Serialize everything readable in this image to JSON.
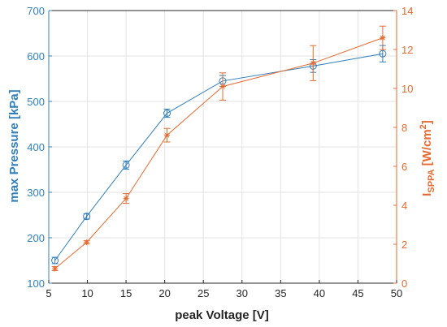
{
  "chart_data": {
    "type": "line",
    "title": "",
    "xlabel": "peak Voltage [V]",
    "ylabel_left": "max Pressure [kPa]",
    "ylabel_right": {
      "main": "I",
      "sub": "SPPA",
      "unit_prefix": " [W/cm",
      "unit_sup": "2",
      "unit_suffix": "]"
    },
    "xlim": [
      5,
      50
    ],
    "ylim_left": [
      100,
      700
    ],
    "ylim_right": [
      0,
      14
    ],
    "xticks": [
      5,
      10,
      15,
      20,
      25,
      30,
      35,
      40,
      45,
      50
    ],
    "yticks_left": [
      100,
      200,
      300,
      400,
      500,
      600,
      700
    ],
    "yticks_right": [
      0,
      2,
      4,
      6,
      8,
      10,
      12,
      14
    ],
    "grid": true,
    "series": [
      {
        "axis": "left",
        "marker": "circle",
        "color": "#2f7fbd",
        "x": [
          5.8,
          9.9,
          15.0,
          20.3,
          27.5,
          39.2,
          48.2
        ],
        "y": [
          150,
          247,
          360,
          474,
          545,
          578,
          605
        ],
        "err": [
          7,
          6,
          9,
          9,
          12,
          14,
          18
        ]
      },
      {
        "axis": "right",
        "marker": "star",
        "color": "#e8692d",
        "x": [
          5.8,
          9.9,
          15.0,
          20.3,
          27.5,
          39.2,
          48.2
        ],
        "y": [
          0.75,
          2.1,
          4.35,
          7.6,
          10.1,
          11.3,
          12.6
        ],
        "err": [
          0.1,
          0.08,
          0.25,
          0.35,
          0.7,
          0.9,
          0.6
        ]
      }
    ]
  }
}
